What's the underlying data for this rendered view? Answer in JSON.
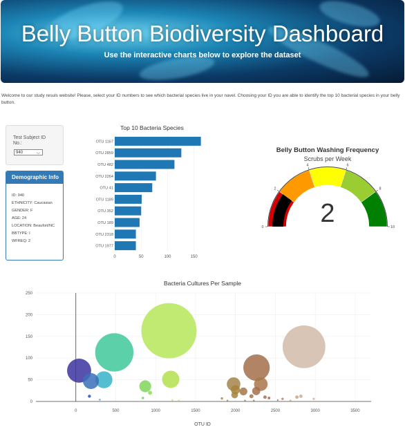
{
  "header": {
    "title": "Belly Button Biodiversity Dashboard",
    "subtitle": "Use the interactive charts below to explore the dataset"
  },
  "intro_text": "Welcome to our study resuls website! Please, select your ID numbers to see which bacterial species live in your navel. Choosing your ID you are able to identify the top 10 bacterial species in your belly button.",
  "selector": {
    "label": "Test Subject ID No.:",
    "selected_value": "940"
  },
  "demographics": {
    "title": "Demographic Info",
    "lines": [
      "ID: 940",
      "ETHNICITY: Caucasian",
      "GENDER: F",
      "AGE: 24",
      "LOCATION: Beaufort/NC",
      "BBTYPE: I",
      "WFREQ: 2"
    ]
  },
  "chart_data": [
    {
      "type": "bar",
      "orientation": "horizontal",
      "title": "Top 10 Bacteria Species",
      "categories": [
        "OTU 1167",
        "OTU 2859",
        "OTU 482",
        "OTU 2264",
        "OTU 41",
        "OTU 1189",
        "OTU 352",
        "OTU 189",
        "OTU 2318",
        "OTU 1977"
      ],
      "values": [
        163,
        126,
        113,
        78,
        71,
        51,
        50,
        47,
        40,
        40
      ],
      "xlim": [
        0,
        170
      ],
      "xticks": [
        "0",
        "50",
        "100",
        "150"
      ],
      "color": "#1f77b4"
    },
    {
      "type": "gauge",
      "title": "Belly Button Washing Frequency",
      "subtitle": "Scrubs per Week",
      "value": 2,
      "range": [
        0,
        10
      ],
      "tick_labels": [
        "0",
        "2",
        "4",
        "6",
        "8",
        "10"
      ],
      "bands": [
        {
          "from": 0,
          "to": 2,
          "color": "#d40000"
        },
        {
          "from": 2,
          "to": 4,
          "color": "#ff9900"
        },
        {
          "from": 4,
          "to": 6,
          "color": "#ffff00"
        },
        {
          "from": 6,
          "to": 8,
          "color": "#9acd32"
        },
        {
          "from": 8,
          "to": 10,
          "color": "#008000"
        }
      ],
      "bar_color": "#000000"
    },
    {
      "type": "scatter",
      "subtype": "bubble",
      "title": "Bacteria Cultures Per Sample",
      "xlabel": "OTU ID",
      "xlim": [
        -500,
        3700
      ],
      "ylim": [
        0,
        250
      ],
      "xticks": [
        "0",
        "500",
        "1000",
        "1500",
        "2000",
        "2500",
        "3000",
        "3500"
      ],
      "yticks": [
        "0",
        "50",
        "100",
        "150",
        "200",
        "250"
      ],
      "points": [
        {
          "x": 1167,
          "y": 163,
          "size": 163,
          "color": "#b6e65a"
        },
        {
          "x": 2859,
          "y": 126,
          "size": 126,
          "color": "#d2bba8"
        },
        {
          "x": 482,
          "y": 113,
          "size": 113,
          "color": "#3fc99a"
        },
        {
          "x": 2264,
          "y": 78,
          "size": 78,
          "color": "#a56f4b"
        },
        {
          "x": 41,
          "y": 71,
          "size": 71,
          "color": "#3b34a0"
        },
        {
          "x": 1189,
          "y": 51,
          "size": 51,
          "color": "#b3e04e"
        },
        {
          "x": 352,
          "y": 50,
          "size": 50,
          "color": "#37b3c8"
        },
        {
          "x": 189,
          "y": 47,
          "size": 47,
          "color": "#3a6fb8"
        },
        {
          "x": 2318,
          "y": 40,
          "size": 40,
          "color": "#a8754a"
        },
        {
          "x": 1977,
          "y": 40,
          "size": 40,
          "color": "#a5844a"
        },
        {
          "x": 870,
          "y": 35,
          "size": 35,
          "color": "#7fd65a"
        },
        {
          "x": 2000,
          "y": 27,
          "size": 27,
          "color": "#a8823c"
        },
        {
          "x": 2100,
          "y": 23,
          "size": 23,
          "color": "#a47548"
        },
        {
          "x": 2260,
          "y": 24,
          "size": 24,
          "color": "#a5704a"
        },
        {
          "x": 1990,
          "y": 15,
          "size": 20,
          "color": "#a78639"
        },
        {
          "x": 930,
          "y": 20,
          "size": 12,
          "color": "#8fdc5a"
        },
        {
          "x": 2200,
          "y": 12,
          "size": 12,
          "color": "#a47747"
        },
        {
          "x": 2370,
          "y": 10,
          "size": 10,
          "color": "#a86f4f"
        },
        {
          "x": 2420,
          "y": 8,
          "size": 8,
          "color": "#aa6e51"
        },
        {
          "x": 2770,
          "y": 10,
          "size": 10,
          "color": "#c9a48c"
        },
        {
          "x": 2820,
          "y": 12,
          "size": 10,
          "color": "#ccab93"
        },
        {
          "x": 2980,
          "y": 6,
          "size": 7,
          "color": "#d3b8a6"
        },
        {
          "x": 1830,
          "y": 7,
          "size": 7,
          "color": "#a68b40"
        },
        {
          "x": 2590,
          "y": 6,
          "size": 7,
          "color": "#b8866a"
        },
        {
          "x": 170,
          "y": 12,
          "size": 9,
          "color": "#2f4fb0"
        },
        {
          "x": 840,
          "y": 8,
          "size": 7,
          "color": "#6fd05e"
        },
        {
          "x": 300,
          "y": 4,
          "size": 5,
          "color": "#4a8cc6"
        },
        {
          "x": 1210,
          "y": 3,
          "size": 5,
          "color": "#c5e24e"
        },
        {
          "x": 2120,
          "y": 2,
          "size": 5,
          "color": "#a07a50"
        },
        {
          "x": 2530,
          "y": 3,
          "size": 4,
          "color": "#b07a60"
        },
        {
          "x": 2690,
          "y": 2,
          "size": 4,
          "color": "#c29a80"
        },
        {
          "x": 1900,
          "y": 2,
          "size": 4,
          "color": "#a68640"
        },
        {
          "x": 2230,
          "y": 2,
          "size": 5,
          "color": "#a57348"
        },
        {
          "x": 1290,
          "y": 2,
          "size": 4,
          "color": "#c2e54a"
        }
      ]
    }
  ]
}
